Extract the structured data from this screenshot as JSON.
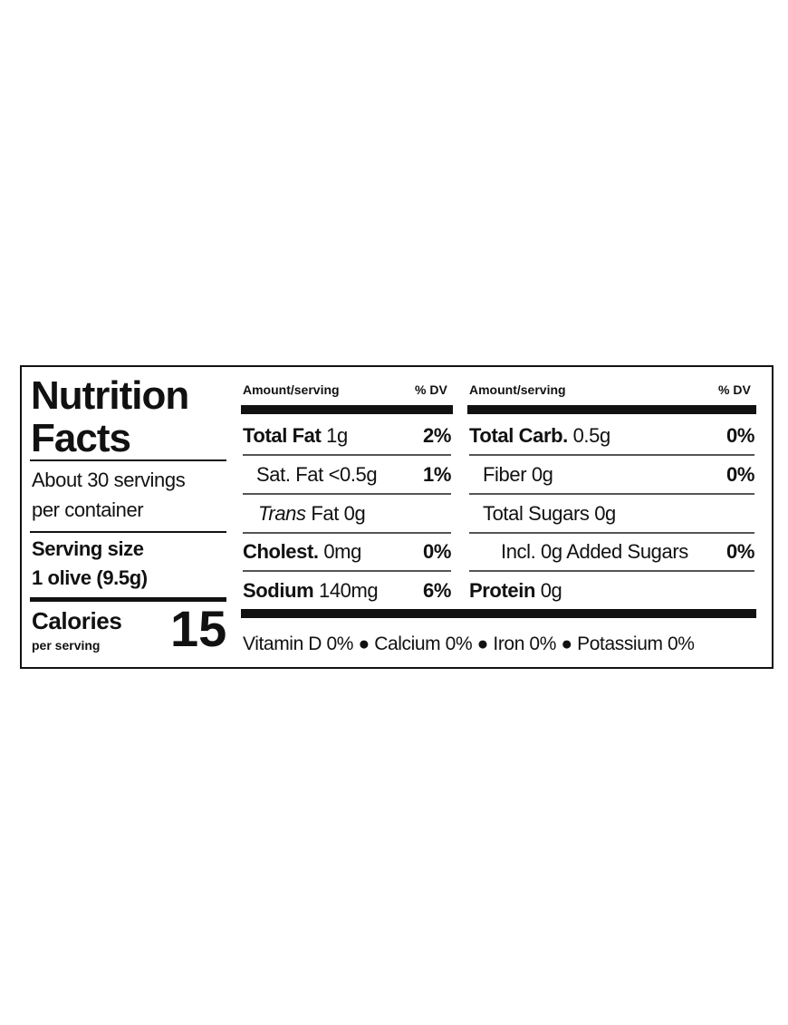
{
  "label": {
    "title": [
      "Nutrition",
      "Facts"
    ],
    "servings": [
      "About 30 servings",
      "per container"
    ],
    "serving_size": {
      "label": "Serving size",
      "value": "1 olive (9.5g)"
    },
    "calories": {
      "label": "Calories",
      "sublabel": "per serving",
      "value": "15"
    },
    "columns": [
      {
        "header": {
          "amount": "Amount/serving",
          "dv": "% DV"
        },
        "rows": [
          {
            "name": "Total Fat",
            "amount": "1g",
            "dv": "2%"
          },
          {
            "name": "Sat. Fat",
            "amount": "<0.5g",
            "dv": "1%"
          },
          {
            "name": "Trans",
            "amount": "Fat 0g"
          },
          {
            "name": "Cholest.",
            "amount": "0mg",
            "dv": "0%"
          },
          {
            "name": "Sodium",
            "amount": "140mg",
            "dv": "6%"
          }
        ]
      },
      {
        "header": {
          "amount": "Amount/serving",
          "dv": "% DV"
        },
        "rows": [
          {
            "name": "Total Carb.",
            "amount": "0.5g",
            "dv": "0%"
          },
          {
            "name": "Fiber",
            "amount": "0g",
            "dv": "0%"
          },
          {
            "name": "Total Sugars",
            "amount": "0g"
          },
          {
            "name": "Incl. 0g Added Sugars",
            "dv": "0%"
          },
          {
            "name": "Protein",
            "amount": "0g"
          }
        ]
      }
    ],
    "footer": [
      "Vitamin D 0%",
      "Calcium 0%",
      "Iron 0%",
      "Potassium 0%"
    ]
  }
}
